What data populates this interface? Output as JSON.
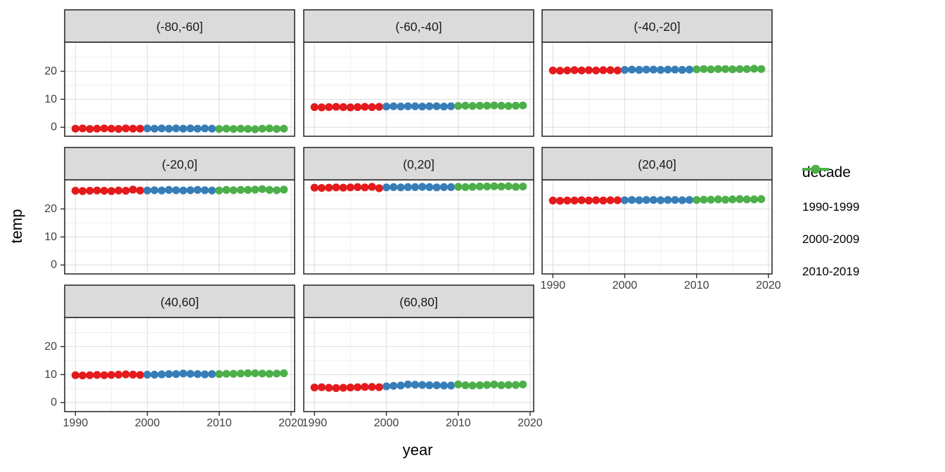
{
  "chart_data": {
    "type": "scatter",
    "title": "",
    "xlabel": "year",
    "ylabel": "temp",
    "grid": true,
    "facet_layout": {
      "rows": 3,
      "cols": 3,
      "note": "8 facets, last row has 2 panels"
    },
    "xlim": [
      1988.5,
      2020.5
    ],
    "ylim": [
      -3.2,
      30.4
    ],
    "x_major_ticks": [
      1990,
      2000,
      2010,
      2020
    ],
    "x_minor_gridlines": [
      1995,
      2005,
      2015
    ],
    "y_major_ticks": [
      0,
      10,
      20
    ],
    "y_minor_gridlines": [
      5,
      15,
      25
    ],
    "x": [
      1990,
      1991,
      1992,
      1993,
      1994,
      1995,
      1996,
      1997,
      1998,
      1999,
      2000,
      2001,
      2002,
      2003,
      2004,
      2005,
      2006,
      2007,
      2008,
      2009,
      2010,
      2011,
      2012,
      2013,
      2014,
      2015,
      2016,
      2017,
      2018,
      2019
    ],
    "legend": {
      "title": "decade",
      "position": "right",
      "entries": [
        {
          "label": "1990-1999",
          "color": "#E41A1C"
        },
        {
          "label": "2000-2009",
          "color": "#377EB8"
        },
        {
          "label": "2010-2019",
          "color": "#4DAF4A"
        }
      ]
    },
    "facets": [
      {
        "label": "(-80,-60]",
        "values": [
          -0.5,
          -0.4,
          -0.6,
          -0.5,
          -0.4,
          -0.5,
          -0.6,
          -0.4,
          -0.5,
          -0.5,
          -0.4,
          -0.5,
          -0.4,
          -0.5,
          -0.4,
          -0.5,
          -0.4,
          -0.5,
          -0.4,
          -0.5,
          -0.6,
          -0.5,
          -0.6,
          -0.5,
          -0.6,
          -0.7,
          -0.5,
          -0.4,
          -0.6,
          -0.5
        ]
      },
      {
        "label": "(-60,-40]",
        "values": [
          7.2,
          7.1,
          7.2,
          7.3,
          7.2,
          7.1,
          7.2,
          7.3,
          7.2,
          7.3,
          7.4,
          7.5,
          7.4,
          7.5,
          7.5,
          7.4,
          7.5,
          7.5,
          7.4,
          7.5,
          7.6,
          7.7,
          7.6,
          7.7,
          7.7,
          7.8,
          7.7,
          7.6,
          7.7,
          7.8
        ]
      },
      {
        "label": "(-40,-20]",
        "values": [
          20.3,
          20.2,
          20.3,
          20.4,
          20.3,
          20.4,
          20.3,
          20.4,
          20.4,
          20.3,
          20.5,
          20.6,
          20.5,
          20.6,
          20.6,
          20.5,
          20.6,
          20.6,
          20.5,
          20.6,
          20.7,
          20.8,
          20.7,
          20.8,
          20.8,
          20.7,
          20.8,
          20.8,
          20.9,
          20.8
        ]
      },
      {
        "label": "(-20,0]",
        "values": [
          26.5,
          26.4,
          26.5,
          26.6,
          26.5,
          26.4,
          26.6,
          26.5,
          26.9,
          26.6,
          26.6,
          26.7,
          26.6,
          26.8,
          26.7,
          26.6,
          26.7,
          26.8,
          26.7,
          26.6,
          26.6,
          26.8,
          26.7,
          26.8,
          26.8,
          26.9,
          27.1,
          26.8,
          26.7,
          26.9
        ]
      },
      {
        "label": "(0,20]",
        "values": [
          27.6,
          27.5,
          27.6,
          27.7,
          27.6,
          27.7,
          27.8,
          27.7,
          27.9,
          27.4,
          27.7,
          27.8,
          27.7,
          27.8,
          27.8,
          27.9,
          27.8,
          27.7,
          27.8,
          27.8,
          27.9,
          27.8,
          27.9,
          28.0,
          28.0,
          28.1,
          28.0,
          28.1,
          27.9,
          28.0
        ]
      },
      {
        "label": "(20,40]",
        "values": [
          23.0,
          22.9,
          23.0,
          23.0,
          23.1,
          23.0,
          23.1,
          23.0,
          23.1,
          23.1,
          23.1,
          23.2,
          23.1,
          23.2,
          23.2,
          23.1,
          23.2,
          23.2,
          23.1,
          23.2,
          23.2,
          23.3,
          23.3,
          23.4,
          23.3,
          23.4,
          23.5,
          23.4,
          23.4,
          23.5
        ]
      },
      {
        "label": "(40,60]",
        "values": [
          9.8,
          9.7,
          9.8,
          9.9,
          9.8,
          9.9,
          10.0,
          10.1,
          10.0,
          9.9,
          10.0,
          10.0,
          10.1,
          10.2,
          10.2,
          10.4,
          10.3,
          10.2,
          10.1,
          10.2,
          10.2,
          10.3,
          10.3,
          10.4,
          10.5,
          10.5,
          10.4,
          10.3,
          10.4,
          10.5
        ]
      },
      {
        "label": "(60,80]",
        "values": [
          5.4,
          5.5,
          5.3,
          5.2,
          5.3,
          5.4,
          5.5,
          5.6,
          5.6,
          5.5,
          5.8,
          6.0,
          6.1,
          6.5,
          6.4,
          6.3,
          6.2,
          6.2,
          6.1,
          6.1,
          6.5,
          6.2,
          6.1,
          6.2,
          6.3,
          6.5,
          6.2,
          6.3,
          6.3,
          6.5
        ]
      }
    ],
    "style": {
      "strip_fill": "#DBDBDB",
      "border_color": "#2E2E2E",
      "grid_major_color": "#E2E2E2",
      "grid_minor_color": "#F0F0F0",
      "tick_label_color": "#404040",
      "strip_text_color": "#1A1A1A",
      "panel_fill": "#FFFFFF"
    }
  }
}
